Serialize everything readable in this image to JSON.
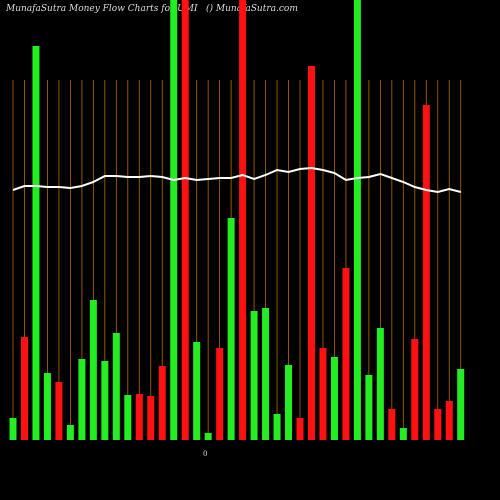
{
  "chart_data": {
    "type": "bar",
    "title": "MunafaSutra  Money Flow  Charts for UMI",
    "subtitle": "() MunafaSutra.com",
    "annotation": "0",
    "categories": [
      null,
      null,
      null,
      null,
      null,
      null,
      null,
      null,
      null,
      null,
      null,
      null,
      null,
      null,
      null,
      null,
      null,
      null,
      null,
      null,
      null,
      null,
      null,
      null,
      null,
      null,
      null,
      null,
      null,
      null,
      null,
      null,
      null,
      null,
      null,
      null,
      null,
      null,
      null,
      null
    ],
    "ylim": [
      0,
      440
    ],
    "series": [
      {
        "type": "bar",
        "colors": [
          "#22ee22",
          "#ff1111",
          "#22ee22",
          "#22ee22",
          "#ff1111",
          "#22ee22",
          "#22ee22",
          "#22ee22",
          "#22ee22",
          "#22ee22",
          "#22ee22",
          "#ff1111",
          "#ff1111",
          "#ff1111",
          "#22ee22",
          "#ff1111",
          "#22ee22",
          "#22ee22",
          "#ff1111",
          "#22ee22",
          "#ff1111",
          "#22ee22",
          "#22ee22",
          "#22ee22",
          "#22ee22",
          "#ff1111",
          "#ff1111",
          "#ff1111",
          "#22ee22",
          "#ff1111",
          "#22ee22",
          "#22ee22",
          "#22ee22",
          "#ff1111",
          "#22ee22",
          "#ff1111",
          "#ff1111",
          "#ff1111",
          "#ff1111",
          "#22ee22"
        ],
        "values": [
          22,
          103,
          394,
          67,
          58,
          15,
          81,
          140,
          79,
          107,
          45,
          46,
          44,
          74,
          440,
          440,
          98,
          7,
          92,
          222,
          440,
          129,
          132,
          26,
          75,
          22,
          374,
          92,
          83,
          172,
          440,
          65,
          112,
          31,
          12,
          101,
          335,
          31,
          39,
          71
        ]
      },
      {
        "type": "line",
        "color": "#ffffff",
        "values": [
          250,
          254,
          254,
          253,
          253,
          252,
          254,
          258,
          264,
          264,
          263,
          263,
          264,
          263,
          260,
          262,
          260,
          261,
          262,
          262,
          265,
          261,
          265,
          270,
          268,
          271,
          272,
          270,
          267,
          260,
          262,
          263,
          266,
          262,
          258,
          253,
          250,
          248,
          251,
          248
        ]
      }
    ]
  }
}
